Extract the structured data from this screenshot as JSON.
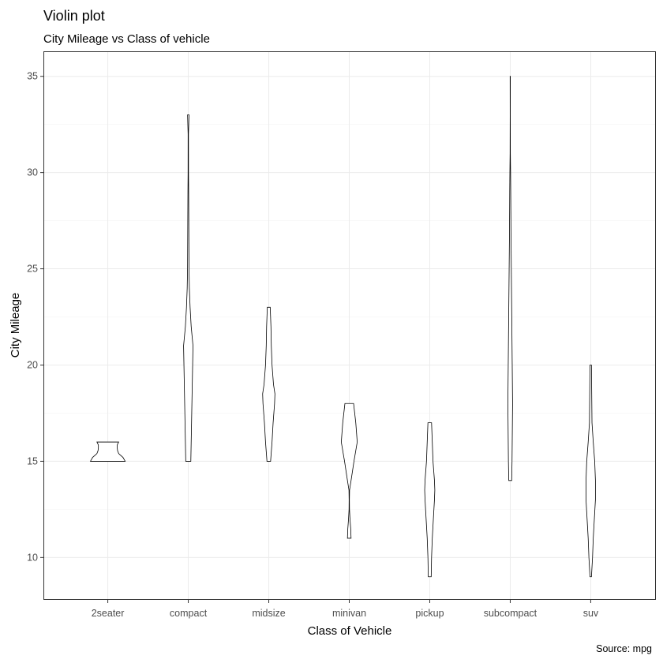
{
  "chart_data": {
    "type": "violin",
    "title": "Violin plot",
    "subtitle": "City Mileage vs Class of vehicle",
    "xlabel": "Class of Vehicle",
    "ylabel": "City Mileage",
    "caption": "Source: mpg",
    "ylim": [
      7.8,
      36.3
    ],
    "yticks": [
      10,
      15,
      20,
      25,
      30,
      35
    ],
    "grid": true,
    "categories": [
      "2seater",
      "compact",
      "midsize",
      "minivan",
      "pickup",
      "subcompact",
      "suv"
    ],
    "violins": [
      {
        "category": "2seater",
        "min": 15,
        "max": 16,
        "profile": [
          [
            15,
            0.48
          ],
          [
            15.2,
            0.42
          ],
          [
            15.4,
            0.3
          ],
          [
            15.55,
            0.27
          ],
          [
            15.7,
            0.26
          ],
          [
            15.85,
            0.26
          ],
          [
            16,
            0.3
          ]
        ]
      },
      {
        "category": "compact",
        "min": 15,
        "max": 33,
        "profile": [
          [
            15,
            0.07
          ],
          [
            16,
            0.08
          ],
          [
            17,
            0.09
          ],
          [
            18,
            0.1
          ],
          [
            19,
            0.11
          ],
          [
            20,
            0.12
          ],
          [
            21,
            0.13
          ],
          [
            22,
            0.08
          ],
          [
            23,
            0.05
          ],
          [
            24,
            0.03
          ],
          [
            25,
            0.02
          ],
          [
            27,
            0.015
          ],
          [
            29,
            0.01
          ],
          [
            30,
            0.006
          ],
          [
            32,
            0.005
          ],
          [
            33,
            0.02
          ]
        ]
      },
      {
        "category": "midsize",
        "min": 15,
        "max": 23,
        "profile": [
          [
            15,
            0.05
          ],
          [
            16,
            0.09
          ],
          [
            17,
            0.12
          ],
          [
            18,
            0.16
          ],
          [
            18.5,
            0.17
          ],
          [
            19,
            0.13
          ],
          [
            20,
            0.09
          ],
          [
            21,
            0.07
          ],
          [
            22,
            0.06
          ],
          [
            23,
            0.04
          ]
        ]
      },
      {
        "category": "minivan",
        "min": 11,
        "max": 18,
        "profile": [
          [
            11,
            0.05
          ],
          [
            11.5,
            0.04
          ],
          [
            12,
            0.02
          ],
          [
            12.5,
            0.006
          ],
          [
            13,
            0.004
          ],
          [
            13.5,
            0.008
          ],
          [
            14,
            0.05
          ],
          [
            15,
            0.13
          ],
          [
            16,
            0.22
          ],
          [
            17,
            0.18
          ],
          [
            18,
            0.12
          ]
        ]
      },
      {
        "category": "pickup",
        "min": 9,
        "max": 17,
        "profile": [
          [
            9,
            0.04
          ],
          [
            10,
            0.05
          ],
          [
            11,
            0.07
          ],
          [
            12,
            0.1
          ],
          [
            13,
            0.13
          ],
          [
            13.5,
            0.14
          ],
          [
            14,
            0.13
          ],
          [
            15,
            0.09
          ],
          [
            16,
            0.07
          ],
          [
            17,
            0.05
          ]
        ]
      },
      {
        "category": "subcompact",
        "min": 14,
        "max": 35,
        "profile": [
          [
            14,
            0.04
          ],
          [
            15,
            0.05
          ],
          [
            16,
            0.055
          ],
          [
            17,
            0.06
          ],
          [
            18,
            0.065
          ],
          [
            19,
            0.06
          ],
          [
            20,
            0.055
          ],
          [
            21,
            0.05
          ],
          [
            22,
            0.045
          ],
          [
            23,
            0.04
          ],
          [
            24,
            0.035
          ],
          [
            25,
            0.03
          ],
          [
            26,
            0.025
          ],
          [
            27,
            0.02
          ],
          [
            28,
            0.017
          ],
          [
            29,
            0.014
          ],
          [
            30,
            0.01
          ],
          [
            31,
            0.004
          ],
          [
            33,
            0.002
          ],
          [
            35,
            0.003
          ]
        ]
      },
      {
        "category": "suv",
        "min": 9,
        "max": 20,
        "profile": [
          [
            9,
            0.02
          ],
          [
            10,
            0.05
          ],
          [
            11,
            0.07
          ],
          [
            12,
            0.1
          ],
          [
            13,
            0.13
          ],
          [
            14,
            0.13
          ],
          [
            15,
            0.11
          ],
          [
            16,
            0.07
          ],
          [
            17,
            0.035
          ],
          [
            18,
            0.03
          ],
          [
            19,
            0.025
          ],
          [
            20,
            0.02
          ]
        ]
      }
    ]
  }
}
